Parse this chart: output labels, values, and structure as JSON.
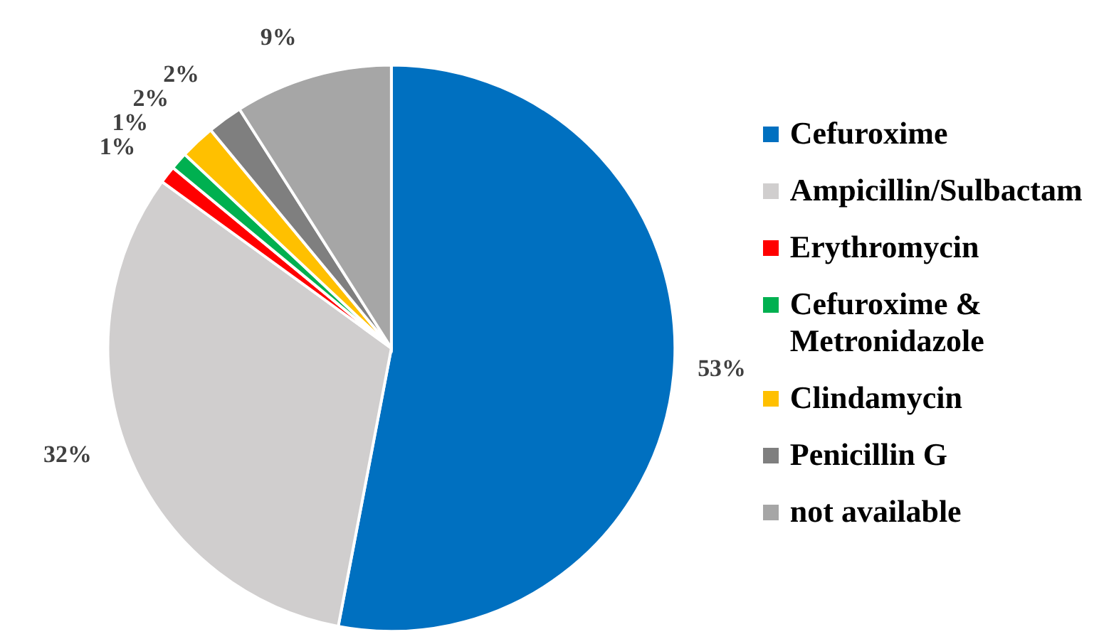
{
  "chart_data": {
    "type": "pie",
    "categories": [
      "Cefuroxime",
      "Ampicillin/Sulbactam",
      "Erythromycin",
      "Cefuroxime & Metronidazole",
      "Clindamycin",
      "Penicillin G",
      "not available"
    ],
    "values": [
      53,
      32,
      1,
      1,
      2,
      2,
      9
    ],
    "value_labels": [
      "53%",
      "32%",
      "1%",
      "1%",
      "2%",
      "2%",
      "9%"
    ],
    "colors": [
      "#0070c0",
      "#d0cece",
      "#ff0000",
      "#00b050",
      "#ffc000",
      "#7f7f7f",
      "#a6a6a6"
    ],
    "legend": "right"
  }
}
